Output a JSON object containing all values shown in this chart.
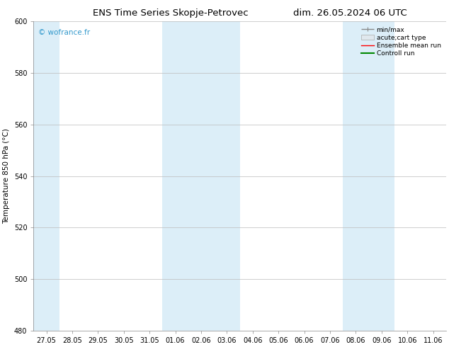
{
  "title_left": "ENS Time Series Skopje-Petrovec",
  "title_right": "dim. 26.05.2024 06 UTC",
  "ylabel": "Temperature 850 hPa (°C)",
  "ylim": [
    480,
    600
  ],
  "yticks": [
    480,
    500,
    520,
    540,
    560,
    580,
    600
  ],
  "x_labels": [
    "27.05",
    "28.05",
    "29.05",
    "30.05",
    "31.05",
    "01.06",
    "02.06",
    "03.06",
    "04.06",
    "05.06",
    "06.06",
    "07.06",
    "08.06",
    "09.06",
    "10.06",
    "11.06"
  ],
  "background_color": "#ffffff",
  "plot_bg_color": "#ffffff",
  "shaded_color": "#dceef8",
  "shaded_indices": [
    0,
    5,
    6,
    7,
    12,
    13
  ],
  "watermark": "© wofrance.fr",
  "watermark_color": "#3399cc",
  "legend_items": [
    {
      "label": "min/max",
      "color": "#888888",
      "lw": 1.0
    },
    {
      "label": "acute;cart type",
      "color": "#cccccc",
      "lw": 4.0
    },
    {
      "label": "Ensemble mean run",
      "color": "#ff0000",
      "lw": 1.0
    },
    {
      "label": "Controll run",
      "color": "#008800",
      "lw": 1.5
    }
  ],
  "grid_color": "#bbbbbb",
  "tick_label_fontsize": 7,
  "axis_label_fontsize": 7.5,
  "title_fontsize": 9.5
}
